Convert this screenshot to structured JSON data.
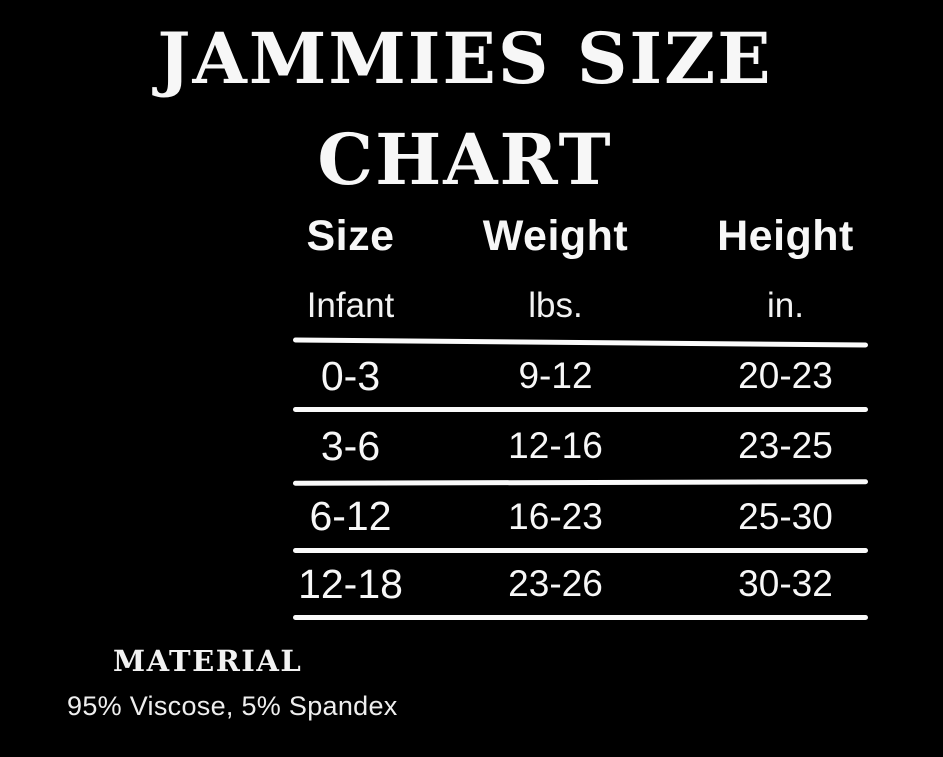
{
  "page": {
    "background_color": "#000000",
    "text_color": "#f7f7f7",
    "rule_color": "#fafafa"
  },
  "title": {
    "line1": "JAMMIES SIZE",
    "line2": "CHART"
  },
  "table": {
    "columns": [
      {
        "header": "Size",
        "subheader": "Infant"
      },
      {
        "header": "Weight",
        "subheader": "lbs."
      },
      {
        "header": "Height",
        "subheader": "in."
      }
    ],
    "rows": [
      [
        "0-3",
        "9-12",
        "20-23"
      ],
      [
        "3-6",
        "12-16",
        "23-25"
      ],
      [
        "6-12",
        "16-23",
        "25-30"
      ],
      [
        "12-18",
        "23-26",
        "30-32"
      ]
    ]
  },
  "material": {
    "heading": "MATERIAL",
    "value": "95% Viscose, 5% Spandex"
  }
}
